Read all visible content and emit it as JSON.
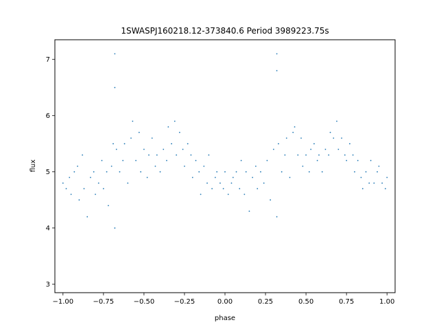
{
  "chart_data": {
    "type": "scatter",
    "title": "1SWASPJ160218.12-373840.6 Period 3989223.75s",
    "xlabel": "phase",
    "ylabel": "flux",
    "xlim": [
      -1.05,
      1.05
    ],
    "ylim": [
      2.85,
      7.35
    ],
    "xticks": [
      -1.0,
      -0.75,
      -0.5,
      -0.25,
      0.0,
      0.25,
      0.5,
      0.75,
      1.0
    ],
    "xtick_labels": [
      "−1.00",
      "−0.75",
      "−0.50",
      "−0.25",
      "0.00",
      "0.25",
      "0.50",
      "0.75",
      "1.00"
    ],
    "yticks": [
      3,
      4,
      5,
      6,
      7
    ],
    "ytick_labels": [
      "3",
      "4",
      "5",
      "6",
      "7"
    ],
    "grid": false,
    "point_color": "#1f77b4",
    "series": [
      {
        "points": [
          [
            -1.0,
            4.8
          ],
          [
            -0.98,
            4.7
          ],
          [
            -0.96,
            4.9
          ],
          [
            -0.95,
            4.6
          ],
          [
            -0.93,
            5.0
          ],
          [
            -0.91,
            5.1
          ],
          [
            -0.9,
            4.5
          ],
          [
            -0.88,
            5.3
          ],
          [
            -0.87,
            4.7
          ],
          [
            -0.85,
            4.2
          ],
          [
            -0.83,
            4.9
          ],
          [
            -0.81,
            5.0
          ],
          [
            -0.8,
            4.6
          ],
          [
            -0.78,
            4.8
          ],
          [
            -0.76,
            5.2
          ],
          [
            -0.75,
            4.7
          ],
          [
            -0.73,
            5.0
          ],
          [
            -0.72,
            4.4
          ],
          [
            -0.7,
            5.1
          ],
          [
            -0.69,
            5.5
          ],
          [
            -0.68,
            6.5
          ],
          [
            -0.68,
            7.1
          ],
          [
            -0.68,
            4.0
          ],
          [
            -0.67,
            5.4
          ],
          [
            -0.65,
            5.0
          ],
          [
            -0.63,
            5.2
          ],
          [
            -0.62,
            5.5
          ],
          [
            -0.6,
            4.8
          ],
          [
            -0.58,
            5.6
          ],
          [
            -0.57,
            5.9
          ],
          [
            -0.55,
            5.2
          ],
          [
            -0.53,
            5.7
          ],
          [
            -0.52,
            5.0
          ],
          [
            -0.5,
            5.4
          ],
          [
            -0.48,
            4.9
          ],
          [
            -0.47,
            5.3
          ],
          [
            -0.45,
            5.6
          ],
          [
            -0.43,
            5.1
          ],
          [
            -0.42,
            5.3
          ],
          [
            -0.4,
            5.0
          ],
          [
            -0.38,
            5.4
          ],
          [
            -0.36,
            5.2
          ],
          [
            -0.35,
            5.8
          ],
          [
            -0.33,
            5.5
          ],
          [
            -0.31,
            5.9
          ],
          [
            -0.3,
            5.3
          ],
          [
            -0.28,
            5.7
          ],
          [
            -0.26,
            5.4
          ],
          [
            -0.25,
            5.1
          ],
          [
            -0.23,
            5.5
          ],
          [
            -0.21,
            5.3
          ],
          [
            -0.2,
            4.9
          ],
          [
            -0.18,
            5.2
          ],
          [
            -0.16,
            5.0
          ],
          [
            -0.15,
            4.6
          ],
          [
            -0.13,
            5.1
          ],
          [
            -0.11,
            4.8
          ],
          [
            -0.1,
            5.3
          ],
          [
            -0.08,
            4.7
          ],
          [
            -0.06,
            4.9
          ],
          [
            -0.05,
            5.0
          ],
          [
            -0.03,
            4.8
          ],
          [
            -0.01,
            4.7
          ],
          [
            0.0,
            5.0
          ],
          [
            0.02,
            4.6
          ],
          [
            0.04,
            4.8
          ],
          [
            0.05,
            4.9
          ],
          [
            0.07,
            5.0
          ],
          [
            0.09,
            4.7
          ],
          [
            0.1,
            5.2
          ],
          [
            0.12,
            4.6
          ],
          [
            0.13,
            5.0
          ],
          [
            0.15,
            4.3
          ],
          [
            0.17,
            4.9
          ],
          [
            0.19,
            5.1
          ],
          [
            0.2,
            4.7
          ],
          [
            0.22,
            5.0
          ],
          [
            0.24,
            4.8
          ],
          [
            0.26,
            5.2
          ],
          [
            0.28,
            4.5
          ],
          [
            0.3,
            5.4
          ],
          [
            0.32,
            6.8
          ],
          [
            0.32,
            7.1
          ],
          [
            0.32,
            4.2
          ],
          [
            0.33,
            5.5
          ],
          [
            0.35,
            5.0
          ],
          [
            0.37,
            5.3
          ],
          [
            0.38,
            5.6
          ],
          [
            0.4,
            4.9
          ],
          [
            0.42,
            5.7
          ],
          [
            0.43,
            5.8
          ],
          [
            0.45,
            5.3
          ],
          [
            0.47,
            5.6
          ],
          [
            0.48,
            5.1
          ],
          [
            0.5,
            5.3
          ],
          [
            0.52,
            5.0
          ],
          [
            0.53,
            5.4
          ],
          [
            0.55,
            5.5
          ],
          [
            0.57,
            5.2
          ],
          [
            0.58,
            5.3
          ],
          [
            0.6,
            5.0
          ],
          [
            0.62,
            5.4
          ],
          [
            0.64,
            5.3
          ],
          [
            0.65,
            5.7
          ],
          [
            0.67,
            5.6
          ],
          [
            0.69,
            5.9
          ],
          [
            0.7,
            5.4
          ],
          [
            0.72,
            5.6
          ],
          [
            0.74,
            5.3
          ],
          [
            0.75,
            5.2
          ],
          [
            0.77,
            5.5
          ],
          [
            0.79,
            5.3
          ],
          [
            0.8,
            5.0
          ],
          [
            0.82,
            5.2
          ],
          [
            0.84,
            4.9
          ],
          [
            0.85,
            4.7
          ],
          [
            0.87,
            5.0
          ],
          [
            0.89,
            4.8
          ],
          [
            0.9,
            5.2
          ],
          [
            0.92,
            4.8
          ],
          [
            0.94,
            5.0
          ],
          [
            0.95,
            5.1
          ],
          [
            0.97,
            4.8
          ],
          [
            0.99,
            4.7
          ],
          [
            1.0,
            4.9
          ]
        ]
      }
    ]
  }
}
